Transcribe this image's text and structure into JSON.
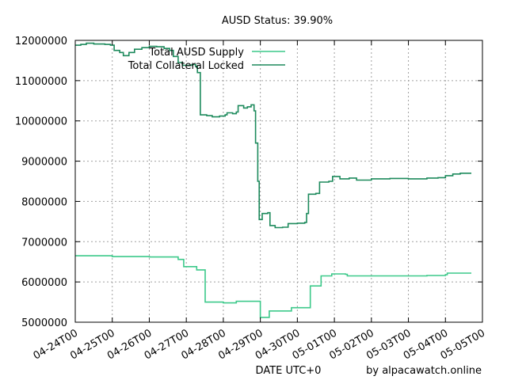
{
  "chart_data": {
    "type": "line",
    "title": "AUSD Status: 39.90%",
    "xlabel": "DATE UTC+0",
    "ylabel": "",
    "credit": "by alpacawatch.online",
    "xlim": [
      0,
      11
    ],
    "ylim": [
      5000000,
      12000000
    ],
    "grid": true,
    "legend_position": "top-right",
    "x_ticks": [
      {
        "value": 0,
        "label": "04-24T00"
      },
      {
        "value": 1,
        "label": "04-25T00"
      },
      {
        "value": 2,
        "label": "04-26T00"
      },
      {
        "value": 3,
        "label": "04-27T00"
      },
      {
        "value": 4,
        "label": "04-28T00"
      },
      {
        "value": 5,
        "label": "04-29T00"
      },
      {
        "value": 6,
        "label": "04-30T00"
      },
      {
        "value": 7,
        "label": "05-01T00"
      },
      {
        "value": 8,
        "label": "05-02T00"
      },
      {
        "value": 9,
        "label": "05-03T00"
      },
      {
        "value": 10,
        "label": "05-04T00"
      },
      {
        "value": 11,
        "label": "05-05T00"
      }
    ],
    "y_ticks": [
      {
        "value": 5000000,
        "label": "5000000"
      },
      {
        "value": 6000000,
        "label": "6000000"
      },
      {
        "value": 7000000,
        "label": "7000000"
      },
      {
        "value": 8000000,
        "label": "8000000"
      },
      {
        "value": 9000000,
        "label": "9000000"
      },
      {
        "value": 10000000,
        "label": "10000000"
      },
      {
        "value": 11000000,
        "label": "11000000"
      },
      {
        "value": 12000000,
        "label": "12000000"
      }
    ],
    "series": [
      {
        "name": "Total AUSD Supply",
        "color": "#3cc98a",
        "step": true,
        "points": [
          [
            0.0,
            6650000
          ],
          [
            0.95,
            6650000
          ],
          [
            1.0,
            6630000
          ],
          [
            2.0,
            6620000
          ],
          [
            2.75,
            6620000
          ],
          [
            2.78,
            6560000
          ],
          [
            2.9,
            6560000
          ],
          [
            2.93,
            6380000
          ],
          [
            3.25,
            6380000
          ],
          [
            3.28,
            6300000
          ],
          [
            3.48,
            6300000
          ],
          [
            3.51,
            5500000
          ],
          [
            4.0,
            5480000
          ],
          [
            4.3,
            5480000
          ],
          [
            4.35,
            5520000
          ],
          [
            4.95,
            5520000
          ],
          [
            5.0,
            5120000
          ],
          [
            5.2,
            5120000
          ],
          [
            5.24,
            5280000
          ],
          [
            5.8,
            5280000
          ],
          [
            5.84,
            5360000
          ],
          [
            6.3,
            5360000
          ],
          [
            6.35,
            5900000
          ],
          [
            6.6,
            5900000
          ],
          [
            6.64,
            6150000
          ],
          [
            6.9,
            6150000
          ],
          [
            6.93,
            6200000
          ],
          [
            7.3,
            6190000
          ],
          [
            7.35,
            6150000
          ],
          [
            8.5,
            6150000
          ],
          [
            9.0,
            6150000
          ],
          [
            9.5,
            6160000
          ],
          [
            10.0,
            6180000
          ],
          [
            10.05,
            6220000
          ],
          [
            10.7,
            6220000
          ]
        ]
      },
      {
        "name": "Total Collateral Locked",
        "color": "#1d8a5c",
        "step": true,
        "points": [
          [
            0.0,
            11880000
          ],
          [
            0.15,
            11900000
          ],
          [
            0.3,
            11930000
          ],
          [
            0.5,
            11910000
          ],
          [
            0.8,
            11900000
          ],
          [
            0.95,
            11880000
          ],
          [
            1.05,
            11750000
          ],
          [
            1.2,
            11700000
          ],
          [
            1.3,
            11620000
          ],
          [
            1.45,
            11700000
          ],
          [
            1.6,
            11780000
          ],
          [
            1.8,
            11820000
          ],
          [
            2.0,
            11850000
          ],
          [
            2.2,
            11840000
          ],
          [
            2.4,
            11800000
          ],
          [
            2.55,
            11750000
          ],
          [
            2.65,
            11600000
          ],
          [
            2.78,
            11450000
          ],
          [
            2.9,
            11380000
          ],
          [
            3.05,
            11380000
          ],
          [
            3.15,
            11400000
          ],
          [
            3.25,
            11350000
          ],
          [
            3.3,
            11200000
          ],
          [
            3.35,
            11200000
          ],
          [
            3.38,
            10150000
          ],
          [
            3.55,
            10130000
          ],
          [
            3.7,
            10100000
          ],
          [
            3.9,
            10120000
          ],
          [
            4.05,
            10150000
          ],
          [
            4.1,
            10200000
          ],
          [
            4.25,
            10180000
          ],
          [
            4.35,
            10220000
          ],
          [
            4.4,
            10380000
          ],
          [
            4.55,
            10320000
          ],
          [
            4.65,
            10350000
          ],
          [
            4.75,
            10400000
          ],
          [
            4.83,
            10250000
          ],
          [
            4.87,
            9450000
          ],
          [
            4.93,
            8500000
          ],
          [
            4.97,
            7550000
          ],
          [
            5.05,
            7700000
          ],
          [
            5.2,
            7720000
          ],
          [
            5.26,
            7400000
          ],
          [
            5.4,
            7350000
          ],
          [
            5.6,
            7360000
          ],
          [
            5.75,
            7450000
          ],
          [
            6.0,
            7460000
          ],
          [
            6.2,
            7480000
          ],
          [
            6.25,
            7700000
          ],
          [
            6.3,
            8180000
          ],
          [
            6.5,
            8200000
          ],
          [
            6.6,
            8480000
          ],
          [
            6.85,
            8500000
          ],
          [
            6.95,
            8620000
          ],
          [
            7.15,
            8560000
          ],
          [
            7.4,
            8580000
          ],
          [
            7.6,
            8530000
          ],
          [
            8.0,
            8560000
          ],
          [
            8.5,
            8570000
          ],
          [
            9.0,
            8560000
          ],
          [
            9.5,
            8580000
          ],
          [
            9.8,
            8590000
          ],
          [
            10.0,
            8640000
          ],
          [
            10.2,
            8680000
          ],
          [
            10.4,
            8700000
          ],
          [
            10.7,
            8700000
          ]
        ]
      }
    ]
  }
}
